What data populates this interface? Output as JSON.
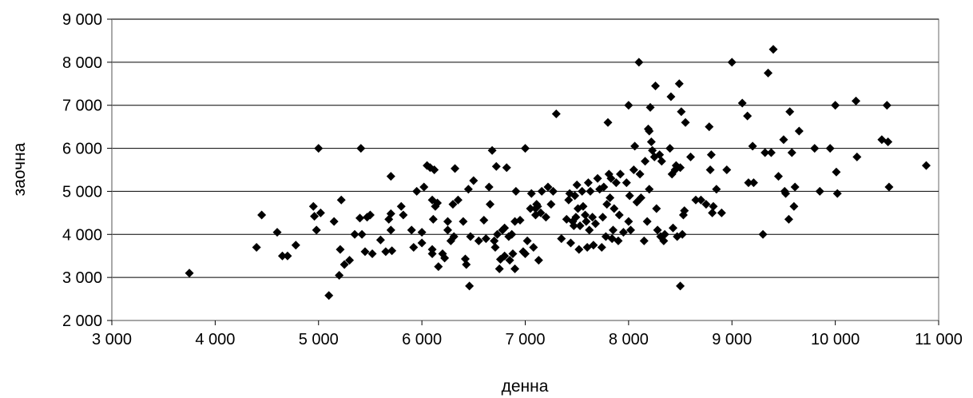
{
  "chart_data": {
    "type": "scatter",
    "title": "",
    "xlabel": "денна",
    "ylabel": "заочна",
    "xlim": [
      3000,
      11000
    ],
    "ylim": [
      2000,
      9000
    ],
    "x_ticks": [
      3000,
      4000,
      5000,
      6000,
      7000,
      8000,
      9000,
      10000,
      11000
    ],
    "y_ticks": [
      2000,
      3000,
      4000,
      5000,
      6000,
      7000,
      8000,
      9000
    ],
    "x_tick_labels": [
      "3 000",
      "4 000",
      "5 000",
      "6 000",
      "7 000",
      "8 000",
      "9 000",
      "10 000",
      "11 000"
    ],
    "y_tick_labels": [
      "2 000",
      "3 000",
      "4 000",
      "5 000",
      "6 000",
      "7 000",
      "8 000",
      "9 000"
    ],
    "grid": "horizontal",
    "legend": "none",
    "marker": "diamond",
    "marker_color": "#000000",
    "series": [
      {
        "points": [
          [
            3750,
            3100
          ],
          [
            4400,
            3700
          ],
          [
            4450,
            4450
          ],
          [
            4600,
            4050
          ],
          [
            4650,
            3500
          ],
          [
            4700,
            3500
          ],
          [
            4780,
            3750
          ],
          [
            4950,
            4650
          ],
          [
            4960,
            4420
          ],
          [
            4980,
            4100
          ],
          [
            5000,
            6000
          ],
          [
            5020,
            4500
          ],
          [
            5100,
            2580
          ],
          [
            5150,
            4300
          ],
          [
            5200,
            3050
          ],
          [
            5210,
            3650
          ],
          [
            5220,
            4800
          ],
          [
            5250,
            3300
          ],
          [
            5300,
            3400
          ],
          [
            5350,
            4000
          ],
          [
            5400,
            4380
          ],
          [
            5410,
            6000
          ],
          [
            5420,
            4000
          ],
          [
            5450,
            3600
          ],
          [
            5470,
            4400
          ],
          [
            5500,
            4450
          ],
          [
            5520,
            3550
          ],
          [
            5600,
            3870
          ],
          [
            5650,
            3600
          ],
          [
            5680,
            4350
          ],
          [
            5700,
            4480
          ],
          [
            5700,
            4100
          ],
          [
            5700,
            5350
          ],
          [
            5710,
            3620
          ],
          [
            5800,
            4650
          ],
          [
            5820,
            4450
          ],
          [
            5900,
            4100
          ],
          [
            5920,
            3700
          ],
          [
            5950,
            5000
          ],
          [
            6000,
            3800
          ],
          [
            6000,
            4050
          ],
          [
            6020,
            5100
          ],
          [
            6050,
            5600
          ],
          [
            6080,
            5550
          ],
          [
            6100,
            3550
          ],
          [
            6100,
            3650
          ],
          [
            6100,
            4800
          ],
          [
            6110,
            4350
          ],
          [
            6120,
            5500
          ],
          [
            6130,
            4650
          ],
          [
            6150,
            4730
          ],
          [
            6160,
            3250
          ],
          [
            6200,
            3550
          ],
          [
            6220,
            3450
          ],
          [
            6250,
            4100
          ],
          [
            6250,
            4300
          ],
          [
            6280,
            3850
          ],
          [
            6300,
            4700
          ],
          [
            6310,
            3950
          ],
          [
            6320,
            5530
          ],
          [
            6350,
            4800
          ],
          [
            6400,
            4300
          ],
          [
            6420,
            3430
          ],
          [
            6430,
            3300
          ],
          [
            6450,
            5050
          ],
          [
            6460,
            2800
          ],
          [
            6470,
            3950
          ],
          [
            6500,
            5250
          ],
          [
            6550,
            3850
          ],
          [
            6600,
            4330
          ],
          [
            6620,
            3900
          ],
          [
            6650,
            5100
          ],
          [
            6660,
            4700
          ],
          [
            6680,
            5950
          ],
          [
            6700,
            3850
          ],
          [
            6710,
            3700
          ],
          [
            6720,
            5580
          ],
          [
            6730,
            4000
          ],
          [
            6750,
            3200
          ],
          [
            6760,
            3420
          ],
          [
            6780,
            4100
          ],
          [
            6800,
            4150
          ],
          [
            6800,
            3500
          ],
          [
            6820,
            5550
          ],
          [
            6840,
            3950
          ],
          [
            6850,
            3400
          ],
          [
            6870,
            4000
          ],
          [
            6880,
            3550
          ],
          [
            6900,
            3200
          ],
          [
            6900,
            4300
          ],
          [
            6910,
            5000
          ],
          [
            6950,
            4330
          ],
          [
            6980,
            3600
          ],
          [
            7000,
            6000
          ],
          [
            7000,
            3550
          ],
          [
            7020,
            3850
          ],
          [
            7050,
            4600
          ],
          [
            7060,
            4950
          ],
          [
            7080,
            3700
          ],
          [
            7100,
            4450
          ],
          [
            7100,
            4600
          ],
          [
            7110,
            4700
          ],
          [
            7120,
            4650
          ],
          [
            7130,
            3400
          ],
          [
            7150,
            4500
          ],
          [
            7160,
            5000
          ],
          [
            7200,
            4400
          ],
          [
            7220,
            5100
          ],
          [
            7250,
            4700
          ],
          [
            7270,
            5000
          ],
          [
            7300,
            6800
          ],
          [
            7350,
            3900
          ],
          [
            7400,
            4350
          ],
          [
            7420,
            4800
          ],
          [
            7430,
            4950
          ],
          [
            7440,
            3800
          ],
          [
            7460,
            4300
          ],
          [
            7470,
            4200
          ],
          [
            7480,
            4900
          ],
          [
            7490,
            4400
          ],
          [
            7500,
            5150
          ],
          [
            7510,
            4600
          ],
          [
            7520,
            3650
          ],
          [
            7530,
            4200
          ],
          [
            7550,
            5000
          ],
          [
            7560,
            4650
          ],
          [
            7580,
            4450
          ],
          [
            7590,
            4300
          ],
          [
            7600,
            3700
          ],
          [
            7610,
            5200
          ],
          [
            7620,
            4100
          ],
          [
            7630,
            5000
          ],
          [
            7650,
            4400
          ],
          [
            7660,
            3750
          ],
          [
            7680,
            4250
          ],
          [
            7700,
            5300
          ],
          [
            7720,
            5050
          ],
          [
            7740,
            3700
          ],
          [
            7750,
            4400
          ],
          [
            7760,
            5100
          ],
          [
            7780,
            3950
          ],
          [
            7790,
            4700
          ],
          [
            7800,
            6600
          ],
          [
            7810,
            5400
          ],
          [
            7820,
            4850
          ],
          [
            7830,
            5300
          ],
          [
            7840,
            3900
          ],
          [
            7850,
            4100
          ],
          [
            7860,
            4600
          ],
          [
            7880,
            5200
          ],
          [
            7900,
            3850
          ],
          [
            7910,
            4450
          ],
          [
            7920,
            5400
          ],
          [
            7950,
            4050
          ],
          [
            7980,
            5200
          ],
          [
            8000,
            7000
          ],
          [
            8000,
            4300
          ],
          [
            8010,
            4900
          ],
          [
            8020,
            4100
          ],
          [
            8050,
            5500
          ],
          [
            8060,
            6050
          ],
          [
            8080,
            4750
          ],
          [
            8100,
            8000
          ],
          [
            8110,
            5400
          ],
          [
            8120,
            4850
          ],
          [
            8150,
            3850
          ],
          [
            8160,
            5700
          ],
          [
            8180,
            4300
          ],
          [
            8190,
            6450
          ],
          [
            8200,
            6400
          ],
          [
            8200,
            5050
          ],
          [
            8210,
            6950
          ],
          [
            8220,
            6150
          ],
          [
            8230,
            5950
          ],
          [
            8250,
            5800
          ],
          [
            8260,
            7450
          ],
          [
            8270,
            4600
          ],
          [
            8280,
            4100
          ],
          [
            8300,
            5850
          ],
          [
            8310,
            3950
          ],
          [
            8320,
            5700
          ],
          [
            8340,
            3850
          ],
          [
            8350,
            4000
          ],
          [
            8400,
            6000
          ],
          [
            8410,
            7200
          ],
          [
            8420,
            5400
          ],
          [
            8430,
            4150
          ],
          [
            8450,
            5500
          ],
          [
            8460,
            5600
          ],
          [
            8470,
            3950
          ],
          [
            8490,
            7500
          ],
          [
            8500,
            2800
          ],
          [
            8500,
            5550
          ],
          [
            8510,
            6850
          ],
          [
            8520,
            4000
          ],
          [
            8530,
            4450
          ],
          [
            8540,
            4550
          ],
          [
            8550,
            6600
          ],
          [
            8600,
            5800
          ],
          [
            8650,
            4800
          ],
          [
            8700,
            4800
          ],
          [
            8750,
            4700
          ],
          [
            8780,
            6500
          ],
          [
            8790,
            5500
          ],
          [
            8800,
            5850
          ],
          [
            8810,
            4500
          ],
          [
            8820,
            4650
          ],
          [
            8850,
            5050
          ],
          [
            8900,
            4500
          ],
          [
            8950,
            5500
          ],
          [
            9000,
            8000
          ],
          [
            9100,
            7050
          ],
          [
            9150,
            6750
          ],
          [
            9160,
            5200
          ],
          [
            9200,
            6050
          ],
          [
            9210,
            5200
          ],
          [
            9300,
            4000
          ],
          [
            9320,
            5900
          ],
          [
            9350,
            7750
          ],
          [
            9380,
            5900
          ],
          [
            9400,
            8300
          ],
          [
            9450,
            5350
          ],
          [
            9500,
            6200
          ],
          [
            9510,
            5000
          ],
          [
            9520,
            4950
          ],
          [
            9550,
            4350
          ],
          [
            9560,
            6850
          ],
          [
            9580,
            5900
          ],
          [
            9600,
            4650
          ],
          [
            9610,
            5100
          ],
          [
            9650,
            6400
          ],
          [
            9800,
            6000
          ],
          [
            9850,
            5000
          ],
          [
            9950,
            6000
          ],
          [
            10000,
            7000
          ],
          [
            10010,
            5450
          ],
          [
            10020,
            4950
          ],
          [
            10200,
            7100
          ],
          [
            10210,
            5800
          ],
          [
            10450,
            6200
          ],
          [
            10500,
            7000
          ],
          [
            10510,
            6150
          ],
          [
            10520,
            5100
          ],
          [
            10880,
            5600
          ]
        ]
      }
    ]
  }
}
